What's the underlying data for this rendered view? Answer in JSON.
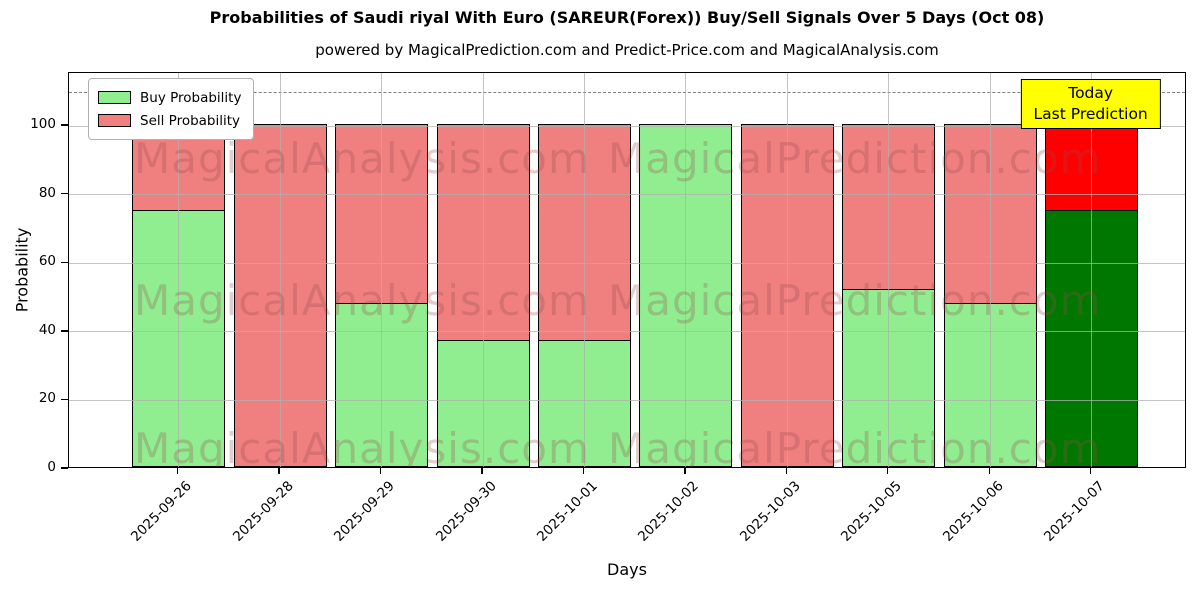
{
  "title": "Probabilities of Saudi riyal With Euro (SAREUR(Forex)) Buy/Sell Signals Over 5 Days (Oct 08)",
  "subtitle": "powered by MagicalPrediction.com and Predict-Price.com and MagicalAnalysis.com",
  "legend": {
    "buy": "Buy Probability",
    "sell": "Sell Probability"
  },
  "annotation": {
    "line1": "Today",
    "line2": "Last Prediction"
  },
  "watermarks": {
    "left_text": "MagicalAnalysis.com",
    "right_text": "MagicalPrediction.com"
  },
  "colors": {
    "buy": "#90ee90",
    "sell": "#f08080",
    "today_buy": "#007800",
    "today_sell": "#ff0000",
    "grid": "#b0b0b0",
    "dashed_line": "#808080",
    "annotation_bg": "#ffff00",
    "watermark": "rgba(150,75,75,0.28)"
  },
  "chart_data": {
    "type": "bar",
    "stacked": true,
    "title": "Probabilities of Saudi riyal With Euro (SAREUR(Forex)) Buy/Sell Signals Over 5 Days (Oct 08)",
    "xlabel": "Days",
    "ylabel": "Probability",
    "categories": [
      "2025-09-26",
      "2025-09-28",
      "2025-09-29",
      "2025-09-30",
      "2025-10-01",
      "2025-10-02",
      "2025-10-03",
      "2025-10-05",
      "2025-10-06",
      "2025-10-07"
    ],
    "series": [
      {
        "name": "Buy Probability",
        "values": [
          75,
          0,
          48,
          37,
          37,
          100,
          0,
          52,
          48,
          75
        ]
      },
      {
        "name": "Sell Probability",
        "values": [
          25,
          100,
          52,
          63,
          63,
          0,
          100,
          48,
          52,
          25
        ]
      }
    ],
    "today_index": 9,
    "ylim": [
      0,
      115.5
    ],
    "yticks": [
      0,
      20,
      40,
      60,
      80,
      100
    ],
    "dashed_hline": 110,
    "grid": true,
    "legend_position": "upper left"
  }
}
